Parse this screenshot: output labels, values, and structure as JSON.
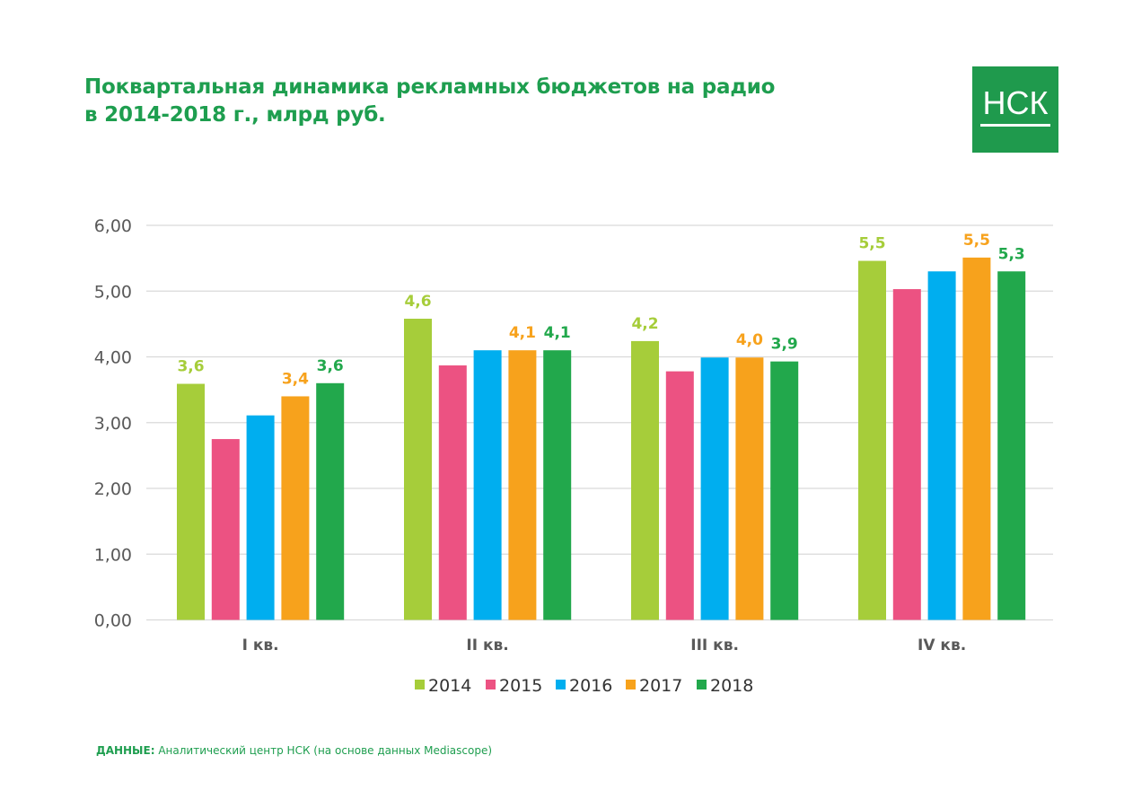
{
  "header": {
    "title_line1": "Поквартальная динамика рекламных бюджетов на радио",
    "title_line2": "в 2014-2018 г., млрд руб.",
    "logo_text": "НСК",
    "brand_color": "#1f9a4d"
  },
  "source": {
    "label": "ДАННЫЕ:",
    "text": "Аналитический центр НСК (на основе данных Mediascope)"
  },
  "chart_data": {
    "type": "bar",
    "title": "Поквартальная динамика рекламных бюджетов на радио в 2014-2018 г., млрд руб.",
    "xlabel": "",
    "ylabel": "",
    "ylim": [
      0,
      6
    ],
    "yticks": [
      "0,00",
      "1,00",
      "2,00",
      "3,00",
      "4,00",
      "5,00",
      "6,00"
    ],
    "grid": true,
    "legend_position": "bottom",
    "categories": [
      "I кв.",
      "II кв.",
      "III кв.",
      "IV кв."
    ],
    "series": [
      {
        "name": "2014",
        "color": "#a6cd3a",
        "values": [
          3.59,
          4.58,
          4.24,
          5.46
        ],
        "labels": [
          "3,6",
          "4,6",
          "4,2",
          "5,5"
        ]
      },
      {
        "name": "2015",
        "color": "#ec5282",
        "values": [
          2.75,
          3.87,
          3.78,
          5.03
        ],
        "labels": [
          null,
          null,
          null,
          null
        ]
      },
      {
        "name": "2016",
        "color": "#00aeef",
        "values": [
          3.11,
          4.1,
          3.99,
          5.3
        ],
        "labels": [
          null,
          null,
          null,
          null
        ]
      },
      {
        "name": "2017",
        "color": "#f7a21c",
        "values": [
          3.4,
          4.1,
          3.99,
          5.51
        ],
        "labels": [
          "3,4",
          "4,1",
          "4,0",
          "5,5"
        ]
      },
      {
        "name": "2018",
        "color": "#22a84c",
        "values": [
          3.6,
          4.1,
          3.93,
          5.3
        ],
        "labels": [
          "3,6",
          "4,1",
          "3,9",
          "5,3"
        ]
      }
    ]
  }
}
